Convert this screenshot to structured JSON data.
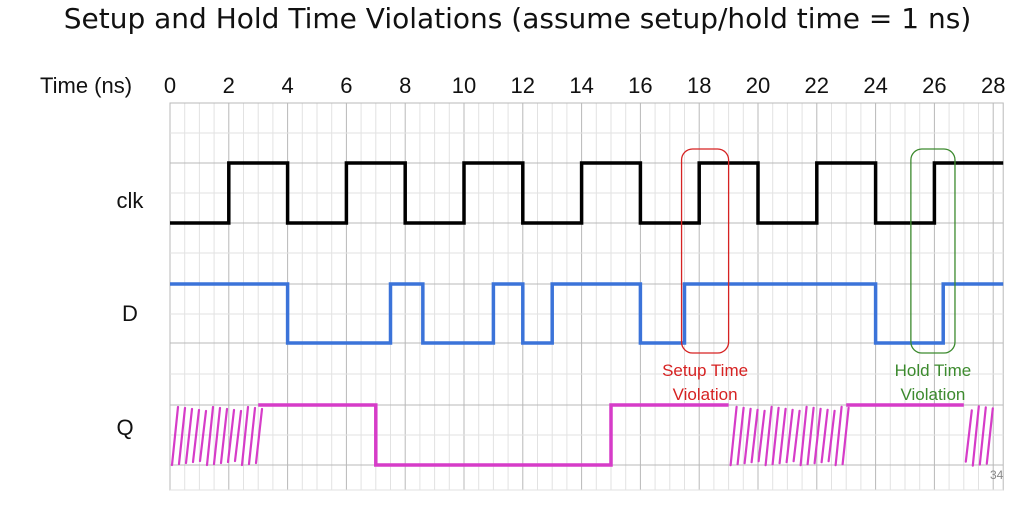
{
  "title": "Setup and Hold Time Violations (assume setup/hold time = 1 ns)",
  "time_axis_label": "Time (ns)",
  "page_number": "34",
  "colors": {
    "clk": "#000000",
    "D": "#3b73d9",
    "Q": "#d63cc8",
    "setup": "#d62222",
    "hold": "#3c8a2e",
    "grid_major": "#b8b8b8",
    "grid_minor": "#e2e2e2"
  },
  "chart_data": {
    "type": "timing-diagram",
    "time_range": [
      0,
      28
    ],
    "time_ticks": [
      0,
      2,
      4,
      6,
      8,
      10,
      12,
      14,
      16,
      18,
      20,
      22,
      24,
      26,
      28
    ],
    "signals": [
      {
        "name": "clk",
        "initial": 0,
        "transitions": [
          [
            2,
            1
          ],
          [
            4,
            0
          ],
          [
            6,
            1
          ],
          [
            8,
            0
          ],
          [
            10,
            1
          ],
          [
            12,
            0
          ],
          [
            14,
            1
          ],
          [
            16,
            0
          ],
          [
            18,
            1
          ],
          [
            20,
            0
          ],
          [
            22,
            1
          ],
          [
            24,
            0
          ],
          [
            26,
            1
          ]
        ]
      },
      {
        "name": "D",
        "initial": 1,
        "transitions": [
          [
            4,
            0
          ],
          [
            7.5,
            1
          ],
          [
            8.6,
            0
          ],
          [
            11,
            1
          ],
          [
            12,
            0
          ],
          [
            13,
            1
          ],
          [
            16,
            0
          ],
          [
            17.5,
            1
          ],
          [
            24,
            0
          ],
          [
            26.3,
            1
          ]
        ]
      },
      {
        "name": "Q",
        "unknown_intervals": [
          [
            0,
            3
          ],
          [
            19,
            23
          ],
          [
            27,
            28
          ]
        ],
        "segments": [
          [
            3,
            7,
            1
          ],
          [
            7,
            15,
            0
          ],
          [
            15,
            19,
            1
          ],
          [
            23,
            27,
            1
          ]
        ]
      }
    ],
    "annotations": [
      {
        "label_line1": "Setup Time",
        "label_line2": "Violation",
        "time_range": [
          17.4,
          19
        ],
        "signals": [
          "clk",
          "D"
        ]
      },
      {
        "label_line1": "Hold Time",
        "label_line2": "Violation",
        "time_range": [
          25.2,
          26.7
        ],
        "signals": [
          "clk",
          "D"
        ]
      }
    ]
  }
}
